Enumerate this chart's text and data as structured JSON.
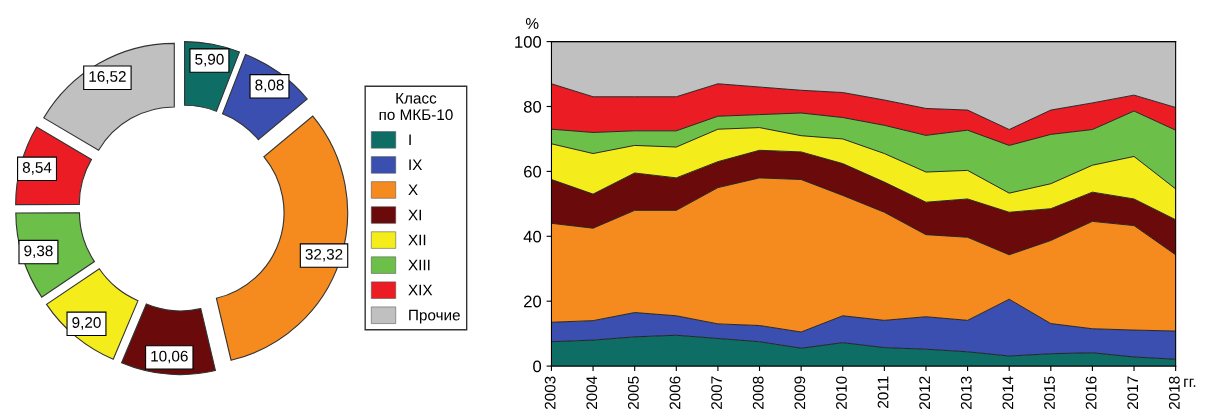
{
  "chart_data": [
    {
      "type": "donut",
      "legend": "right",
      "legend_title": "Класс\nпо МКБ-10",
      "categories": [
        "I",
        "IX",
        "X",
        "XI",
        "XII",
        "XIII",
        "XIX",
        "Прочие"
      ],
      "values": [
        5.9,
        8.08,
        32.32,
        10.06,
        9.2,
        9.38,
        8.54,
        16.52
      ],
      "value_labels": [
        "5,90",
        "8,08",
        "32,32",
        "10,06",
        "9,20",
        "9,38",
        "8,54",
        "16,52"
      ],
      "colors": [
        "#0e6e66",
        "#3a4fb0",
        "#f58a1f",
        "#6b0a0a",
        "#f5ec1c",
        "#6cc04a",
        "#ec1c24",
        "#c0c0c0"
      ]
    },
    {
      "type": "area",
      "stacked": true,
      "ylabel": "%",
      "xlabel": "гг.",
      "x": [
        2003,
        2004,
        2005,
        2006,
        2007,
        2008,
        2009,
        2010,
        2011,
        2012,
        2013,
        2014,
        2015,
        2016,
        2017,
        2018
      ],
      "xlim": [
        2003,
        2018
      ],
      "xticks": [
        2003,
        2004,
        2005,
        2006,
        2007,
        2008,
        2009,
        2010,
        2011,
        2012,
        2013,
        2014,
        2015,
        2016,
        2017,
        2018
      ],
      "ylim": [
        0,
        100
      ],
      "yticks": [
        0,
        20,
        40,
        60,
        80,
        100
      ],
      "series": [
        {
          "color": "#0e6e66",
          "values": [
            7.5,
            8,
            9,
            9.5,
            8.5,
            7.5,
            5.5,
            7.2,
            5.7,
            5.2,
            4.4,
            3.1,
            3.8,
            4.1,
            2.8,
            2.1
          ]
        },
        {
          "color": "#3a4fb0",
          "values": [
            6,
            6,
            7.5,
            6,
            4.5,
            5,
            5,
            8.3,
            8.4,
            10,
            9.7,
            17.5,
            9.3,
            7.4,
            8.3,
            8.7
          ]
        },
        {
          "color": "#f58a1f",
          "values": [
            30.5,
            28.5,
            31.5,
            32.5,
            42,
            45.5,
            47,
            37.1,
            33.3,
            25.3,
            25.6,
            13.7,
            25.6,
            33.1,
            32.2,
            23.5
          ]
        },
        {
          "color": "#6b0a0a",
          "values": [
            13.5,
            10.5,
            11.5,
            10,
            8,
            8.5,
            8.5,
            9.8,
            9.3,
            10,
            11.8,
            13.1,
            9.8,
            9,
            8.2,
            10.8
          ]
        },
        {
          "color": "#f5ec1c",
          "values": [
            11,
            12.5,
            8.5,
            9.5,
            10,
            7,
            5,
            7.6,
            8.8,
            9.3,
            8.8,
            5.9,
            7.7,
            8.3,
            13.1,
            9.5
          ]
        },
        {
          "color": "#6cc04a",
          "values": [
            4.5,
            6.5,
            4.5,
            5,
            4,
            4,
            7,
            6.6,
            8.7,
            11.3,
            12.4,
            14.7,
            15.2,
            11,
            14,
            18.1
          ]
        },
        {
          "color": "#ec1c24",
          "values": [
            14,
            11,
            10.5,
            10.5,
            10,
            8.5,
            7,
            7.7,
            7.8,
            8.3,
            6.2,
            4.9,
            7.5,
            8.2,
            4.9,
            7
          ]
        },
        {
          "color": "#c0c0c0",
          "values": [
            13,
            17,
            17,
            17,
            13,
            14,
            15,
            15.7,
            18,
            20.6,
            21.1,
            27.1,
            21.1,
            18.9,
            16.5,
            20.3
          ]
        }
      ]
    }
  ]
}
